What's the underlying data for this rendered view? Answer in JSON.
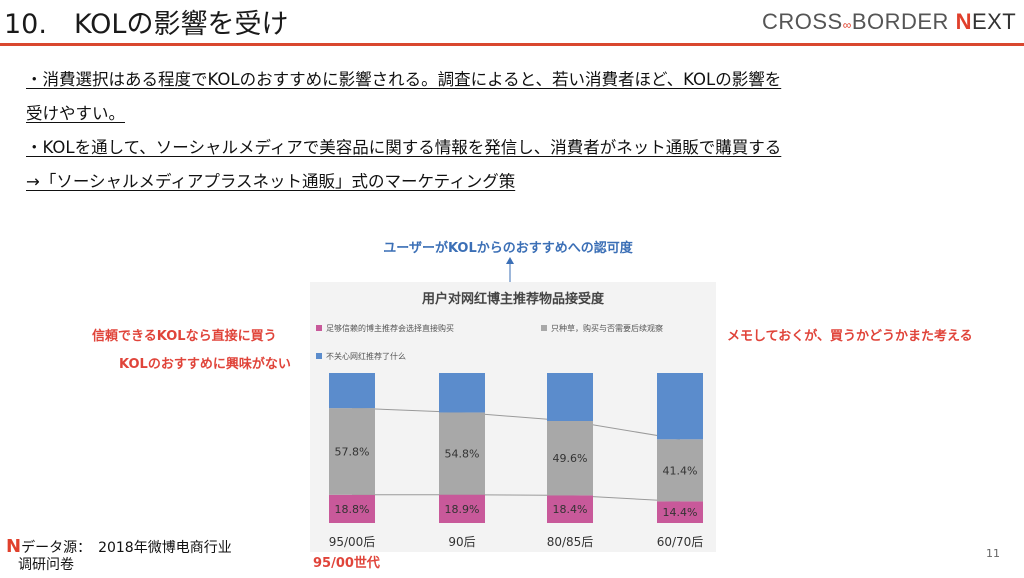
{
  "slide": {
    "title": "10.　KOLの影響を受け",
    "page_number": "11"
  },
  "logo": {
    "cross": "CROSS",
    "border": "BORDER",
    "n": "N",
    "ext": "EXT"
  },
  "bullets": [
    "・消費選択はある程度でKOLのおすすめに影響される。調査によると、若い消費者ほど、KOLの影響を",
    "受けやすい。",
    "・KOLを通して、ソーシャルメディアで美容品に関する情報を発信し、消費者がネット通販で購買する",
    "→「ソーシャルメディアプラスネット通販」式のマーケティング策"
  ],
  "annotations": {
    "top": "ユーザーがKOLからのおすすめへの認可度",
    "left_1": "信頼できるKOLなら直接に買う",
    "left_2": "KOLのおすすめに興味がない",
    "right_1": "メモしておくが、買うかどうかまた考える",
    "bottom": "95/00世代"
  },
  "source": {
    "line1": "データ源：　2018年微博电商行业",
    "line2": "调研问卷"
  },
  "colors": {
    "accent": "#d9472f",
    "series_pink": "#c8599a",
    "series_gray": "#a8a8a8",
    "series_blue": "#5b8ccc",
    "annotation_red": "#e0443a",
    "annotation_blue": "#3b6fb6"
  },
  "chart_data": {
    "type": "bar",
    "stacked": true,
    "title": "用户对网红博主推荐物品接受度",
    "categories": [
      "95/00后",
      "90后",
      "80/85后",
      "60/70后"
    ],
    "series": [
      {
        "name": "足够信赖的博主推荐会选择直接购买",
        "values": [
          18.8,
          18.9,
          18.4,
          14.4
        ],
        "color": "#c8599a"
      },
      {
        "name": "只种草，购买与否需要后续观察",
        "values": [
          57.8,
          54.8,
          49.6,
          41.4
        ],
        "color": "#a8a8a8"
      },
      {
        "name": "不关心网红推荐了什么",
        "values": [
          23.4,
          26.3,
          32.0,
          44.2
        ],
        "color": "#5b8ccc"
      }
    ],
    "ylim": [
      0,
      100
    ],
    "legend": "top",
    "grid": false
  }
}
